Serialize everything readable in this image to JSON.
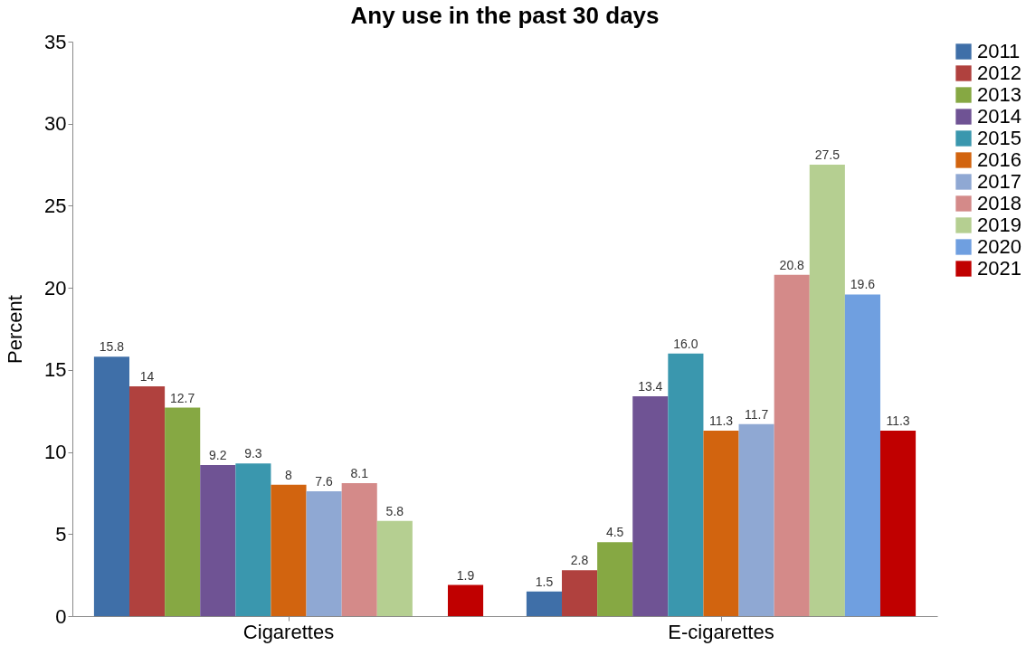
{
  "chart_data": {
    "type": "bar",
    "title": "Any use in the past 30 days",
    "ylabel": "Percent",
    "categories": [
      "Cigarettes",
      "E-cigarettes"
    ],
    "series": [
      {
        "name": "2011",
        "color": "#3f6fa8",
        "values": [
          15.8,
          1.5
        ],
        "value_labels": [
          "15.8",
          "1.5"
        ]
      },
      {
        "name": "2012",
        "color": "#b0413e",
        "values": [
          14,
          2.8
        ],
        "value_labels": [
          "14",
          "2.8"
        ]
      },
      {
        "name": "2013",
        "color": "#86a843",
        "values": [
          12.7,
          4.5
        ],
        "value_labels": [
          "12.7",
          "4.5"
        ]
      },
      {
        "name": "2014",
        "color": "#6f5394",
        "values": [
          9.2,
          13.4
        ],
        "value_labels": [
          "9.2",
          "13.4"
        ]
      },
      {
        "name": "2015",
        "color": "#3a97ae",
        "values": [
          9.3,
          16.0
        ],
        "value_labels": [
          "9.3",
          "16.0"
        ]
      },
      {
        "name": "2016",
        "color": "#d2640f",
        "values": [
          8,
          11.3
        ],
        "value_labels": [
          "8",
          "11.3"
        ]
      },
      {
        "name": "2017",
        "color": "#8fa8d3",
        "values": [
          7.6,
          11.7
        ],
        "value_labels": [
          "7.6",
          "11.7"
        ]
      },
      {
        "name": "2018",
        "color": "#d48a89",
        "values": [
          8.1,
          20.8
        ],
        "value_labels": [
          "8.1",
          "20.8"
        ]
      },
      {
        "name": "2019",
        "color": "#b5cf91",
        "values": [
          5.8,
          27.5
        ],
        "value_labels": [
          "5.8",
          "27.5"
        ]
      },
      {
        "name": "2020",
        "color": "#6f9fe0",
        "values": [
          null,
          19.6
        ],
        "value_labels": [
          null,
          "19.6"
        ]
      },
      {
        "name": "2021",
        "color": "#c00000",
        "values": [
          1.9,
          11.3
        ],
        "value_labels": [
          "1.9",
          "11.3"
        ]
      }
    ],
    "ylim": [
      0,
      35
    ],
    "yticks": [
      0,
      5,
      10,
      15,
      20,
      25,
      30,
      35
    ],
    "grid": false,
    "legend": "right"
  }
}
